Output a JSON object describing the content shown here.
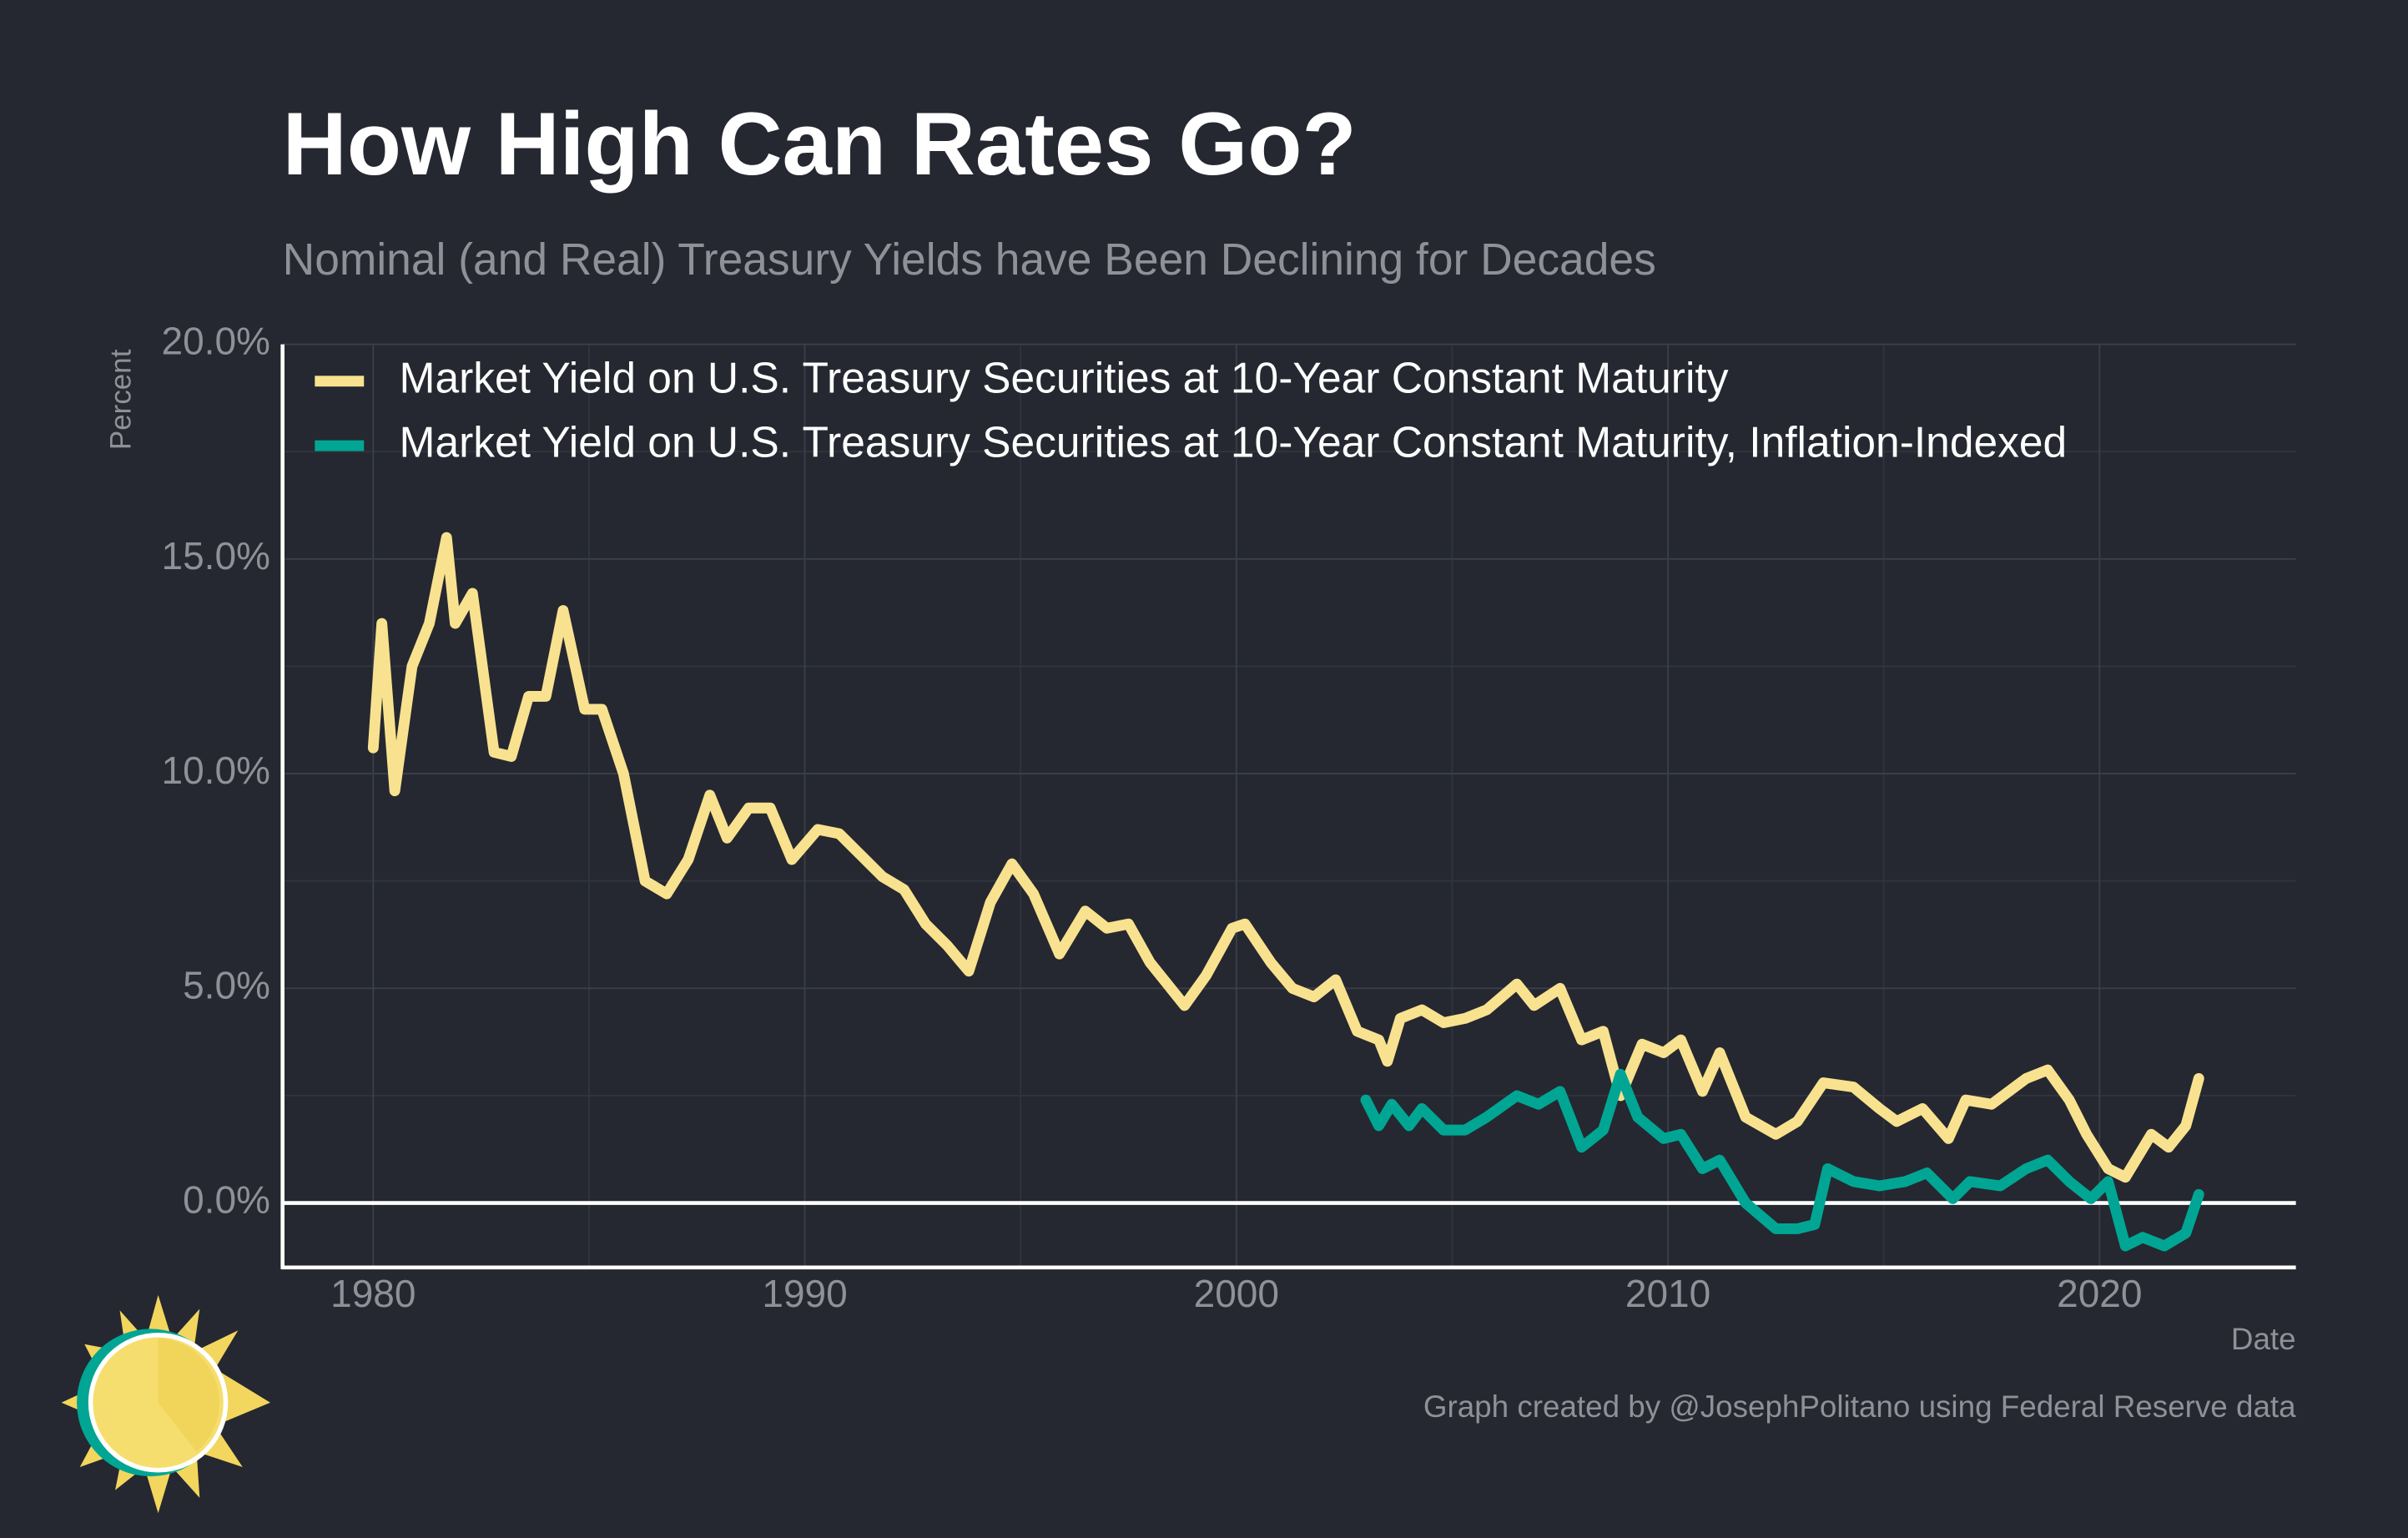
{
  "chart_data": {
    "type": "line",
    "title": "How High Can Rates Go?",
    "subtitle": "Nominal (and Real) Treasury Yields have Been Declining for Decades",
    "y_label": "Percent",
    "x_label": "Date",
    "caption": "Graph created by @JosephPolitano using Federal Reserve data",
    "xlim": [
      1977.9,
      2024.55
    ],
    "ylim": [
      -1.5,
      20
    ],
    "xticks": [
      1980,
      1990,
      2000,
      2010,
      2020
    ],
    "yticks": [
      {
        "value": 0,
        "label": "0.0%"
      },
      {
        "value": 5,
        "label": "5.0%"
      },
      {
        "value": 10,
        "label": "10.0%"
      },
      {
        "value": 15,
        "label": "15.0%"
      },
      {
        "value": 20,
        "label": "20.0%"
      }
    ],
    "hline": 0,
    "grid": true,
    "legend": "top-left",
    "series": [
      {
        "name": "Market Yield on U.S. Treasury Securities at 10-Year Constant Maturity",
        "color": "#f9e28f",
        "x": [
          1980.0,
          1980.2,
          1980.5,
          1980.9,
          1981.3,
          1981.7,
          1981.9,
          1982.3,
          1982.8,
          1983.2,
          1983.6,
          1984.0,
          1984.4,
          1984.9,
          1985.3,
          1985.8,
          1986.3,
          1986.8,
          1987.3,
          1987.8,
          1988.2,
          1988.7,
          1989.2,
          1989.7,
          1990.3,
          1990.8,
          1991.3,
          1991.8,
          1992.3,
          1992.8,
          1993.3,
          1993.8,
          1994.3,
          1994.8,
          1995.3,
          1995.9,
          1996.5,
          1997.0,
          1997.5,
          1998.0,
          1998.8,
          1999.3,
          1999.9,
          2000.2,
          2000.8,
          2001.3,
          2001.8,
          2002.3,
          2002.8,
          2003.3,
          2003.5,
          2003.8,
          2004.3,
          2004.8,
          2005.3,
          2005.8,
          2006.5,
          2006.9,
          2007.5,
          2008.0,
          2008.5,
          2008.9,
          2009.4,
          2009.9,
          2010.3,
          2010.8,
          2011.2,
          2011.8,
          2012.5,
          2013.0,
          2013.6,
          2014.3,
          2014.9,
          2015.3,
          2015.9,
          2016.5,
          2016.9,
          2017.5,
          2018.3,
          2018.8,
          2019.3,
          2019.7,
          2020.2,
          2020.6,
          2021.2,
          2021.6,
          2022.0,
          2022.3
        ],
        "values": [
          10.6,
          13.5,
          9.6,
          12.5,
          13.5,
          15.5,
          13.5,
          14.2,
          10.5,
          10.4,
          11.8,
          11.8,
          13.8,
          11.5,
          11.5,
          10.0,
          7.5,
          7.2,
          8.0,
          9.5,
          8.5,
          9.2,
          9.2,
          8.0,
          8.7,
          8.6,
          8.1,
          7.6,
          7.3,
          6.5,
          6.0,
          5.4,
          7.0,
          7.9,
          7.2,
          5.8,
          6.8,
          6.4,
          6.5,
          5.6,
          4.6,
          5.3,
          6.4,
          6.5,
          5.6,
          5.0,
          4.8,
          5.2,
          4.0,
          3.8,
          3.3,
          4.3,
          4.5,
          4.2,
          4.3,
          4.5,
          5.1,
          4.6,
          5.0,
          3.8,
          4.0,
          2.5,
          3.7,
          3.5,
          3.8,
          2.6,
          3.5,
          2.0,
          1.6,
          1.9,
          2.8,
          2.7,
          2.2,
          1.9,
          2.2,
          1.5,
          2.4,
          2.3,
          2.9,
          3.1,
          2.4,
          1.6,
          0.8,
          0.6,
          1.6,
          1.3,
          1.8,
          2.9
        ]
      },
      {
        "name": "Market Yield on U.S. Treasury Securities at 10-Year Constant Maturity, Inflation-Indexed",
        "color": "#00a693",
        "x": [
          2003.0,
          2003.3,
          2003.6,
          2004.0,
          2004.3,
          2004.8,
          2005.3,
          2005.8,
          2006.5,
          2007.0,
          2007.5,
          2008.0,
          2008.5,
          2008.9,
          2009.3,
          2009.9,
          2010.3,
          2010.8,
          2011.2,
          2011.8,
          2012.5,
          2013.0,
          2013.4,
          2013.7,
          2014.3,
          2014.9,
          2015.5,
          2016.0,
          2016.6,
          2017.0,
          2017.7,
          2018.3,
          2018.8,
          2019.3,
          2019.8,
          2020.2,
          2020.6,
          2021.0,
          2021.5,
          2022.0,
          2022.3
        ],
        "values": [
          2.4,
          1.8,
          2.3,
          1.8,
          2.2,
          1.7,
          1.7,
          2.0,
          2.5,
          2.3,
          2.6,
          1.3,
          1.7,
          3.0,
          2.0,
          1.5,
          1.6,
          0.8,
          1.0,
          0.0,
          -0.6,
          -0.6,
          -0.5,
          0.8,
          0.5,
          0.4,
          0.5,
          0.7,
          0.1,
          0.5,
          0.4,
          0.8,
          1.0,
          0.5,
          0.1,
          0.5,
          -1.0,
          -0.8,
          -1.0,
          -0.7,
          0.2
        ]
      }
    ]
  }
}
